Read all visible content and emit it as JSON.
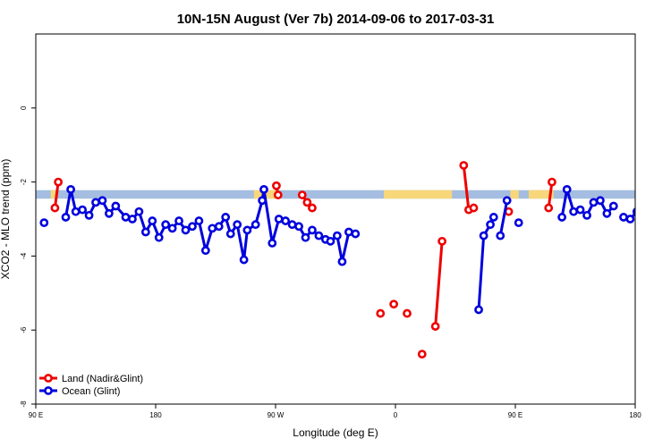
{
  "chart_data": {
    "type": "line",
    "title": "10N-15N August (Ver 7b)   2014-09-06 to 2017-03-31",
    "xlabel": "Longitude (deg E)",
    "ylabel": "XCO2 - MLO trend (ppm)",
    "xlim": [
      90,
      450
    ],
    "ylim": [
      -8,
      2
    ],
    "x_ticks": [
      {
        "value": 90,
        "label": "90 E"
      },
      {
        "value": 162,
        "label": "180"
      },
      {
        "value": 234,
        "label": "90 W"
      },
      {
        "value": 306,
        "label": "0"
      },
      {
        "value": 378,
        "label": "90 E"
      },
      {
        "value": 450,
        "label": "180"
      }
    ],
    "y_ticks": [
      {
        "value": 0,
        "label": "0"
      },
      {
        "value": -2,
        "label": "-2"
      },
      {
        "value": -4,
        "label": "-4"
      },
      {
        "value": -6,
        "label": "-6"
      },
      {
        "value": -8,
        "label": "-8"
      }
    ],
    "legend": {
      "position": "bottom-left"
    },
    "colors": {
      "land": "#ee0000",
      "ocean": "#0000dd",
      "band": "#a4bde0",
      "land_band": "#f8d77a"
    },
    "band": {
      "y_min": -2.45,
      "y_max": -2.22
    },
    "land_band_segments": [
      [
        99,
        102
      ],
      [
        221,
        235
      ],
      [
        299,
        340
      ],
      [
        375,
        380
      ],
      [
        386,
        401
      ]
    ],
    "series": [
      {
        "name": "Land (Nadir&Glint)",
        "color": "#ee0000",
        "segments": [
          [
            [
              101.5,
              -2.7
            ],
            [
              103.5,
              -2.0
            ]
          ],
          [
            [
              234.5,
              -2.1
            ],
            [
              235.5,
              -2.35
            ]
          ],
          [
            [
              250,
              -2.35
            ],
            [
              253,
              -2.55
            ],
            [
              256,
              -2.7
            ]
          ],
          [
            [
              297,
              -5.55
            ]
          ],
          [
            [
              305,
              -5.3
            ]
          ],
          [
            [
              313,
              -5.55
            ]
          ],
          [
            [
              322,
              -6.65
            ]
          ],
          [
            [
              330,
              -5.9
            ],
            [
              334,
              -3.6
            ]
          ],
          [
            [
              347,
              -1.55
            ],
            [
              350,
              -2.75
            ],
            [
              353,
              -2.7
            ]
          ],
          [
            [
              374,
              -2.8
            ]
          ],
          [
            [
              398,
              -2.7
            ],
            [
              400,
              -2.0
            ]
          ]
        ]
      },
      {
        "name": "Ocean (Glint)",
        "color": "#0000dd",
        "segments": [
          [
            [
              95,
              -3.1
            ]
          ],
          [
            [
              108,
              -2.95
            ],
            [
              111,
              -2.2
            ],
            [
              114,
              -2.8
            ],
            [
              118,
              -2.75
            ],
            [
              122,
              -2.9
            ],
            [
              126,
              -2.55
            ],
            [
              130,
              -2.5
            ],
            [
              134,
              -2.85
            ],
            [
              138,
              -2.65
            ],
            [
              144,
              -2.95
            ],
            [
              148,
              -3.0
            ],
            [
              152,
              -2.8
            ],
            [
              156,
              -3.35
            ],
            [
              160,
              -3.05
            ],
            [
              164,
              -3.5
            ],
            [
              168,
              -3.15
            ],
            [
              172,
              -3.25
            ],
            [
              176,
              -3.05
            ],
            [
              180,
              -3.3
            ],
            [
              184,
              -3.2
            ],
            [
              188,
              -3.05
            ],
            [
              192,
              -3.85
            ],
            [
              196,
              -3.25
            ],
            [
              200,
              -3.2
            ],
            [
              204,
              -2.95
            ],
            [
              207,
              -3.4
            ],
            [
              211,
              -3.15
            ],
            [
              215,
              -4.1
            ],
            [
              217,
              -3.3
            ],
            [
              222,
              -3.15
            ],
            [
              226,
              -2.5
            ],
            [
              227,
              -2.2
            ],
            [
              232,
              -3.65
            ],
            [
              236,
              -3.0
            ],
            [
              240,
              -3.05
            ],
            [
              244,
              -3.15
            ],
            [
              248,
              -3.2
            ],
            [
              252,
              -3.5
            ],
            [
              256,
              -3.3
            ],
            [
              260,
              -3.45
            ],
            [
              264,
              -3.55
            ],
            [
              267,
              -3.6
            ],
            [
              271,
              -3.45
            ],
            [
              274,
              -4.15
            ],
            [
              278,
              -3.35
            ],
            [
              282,
              -3.4
            ]
          ],
          [
            [
              356,
              -5.45
            ],
            [
              359,
              -3.45
            ],
            [
              363,
              -3.15
            ],
            [
              365,
              -2.95
            ]
          ],
          [
            [
              369,
              -3.45
            ],
            [
              373,
              -2.5
            ]
          ],
          [
            [
              380,
              -3.1
            ]
          ],
          [
            [
              406,
              -2.95
            ],
            [
              409,
              -2.2
            ],
            [
              413,
              -2.8
            ],
            [
              417,
              -2.75
            ],
            [
              421,
              -2.9
            ],
            [
              425,
              -2.55
            ],
            [
              429,
              -2.5
            ],
            [
              433,
              -2.85
            ],
            [
              437,
              -2.65
            ]
          ],
          [
            [
              443,
              -2.95
            ],
            [
              447,
              -3.0
            ],
            [
              451,
              -2.8
            ],
            [
              455,
              -3.35
            ]
          ]
        ]
      }
    ]
  }
}
